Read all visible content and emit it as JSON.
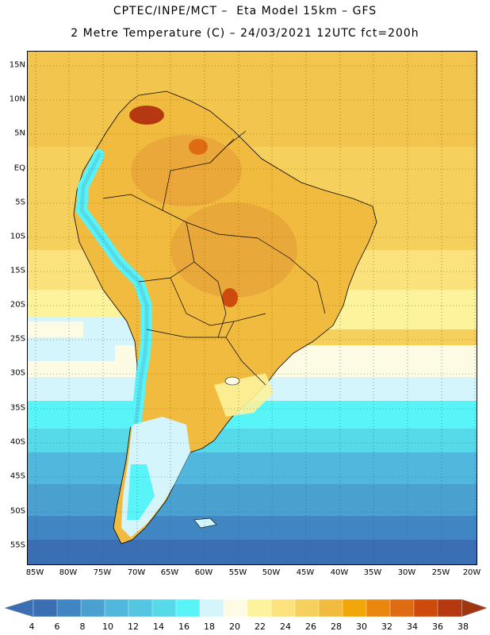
{
  "header": {
    "line1": "CPTEC/INPE/MCT –  Eta Model 15km – GFS",
    "line2": "2 Metre Temperature (C) – 24/03/2021 12UTC fct=200h"
  },
  "axes": {
    "lat_labels": [
      "15N",
      "10N",
      "5N",
      "EQ",
      "5S",
      "10S",
      "15S",
      "20S",
      "25S",
      "30S",
      "35S",
      "40S",
      "45S",
      "50S",
      "55S"
    ],
    "lon_labels": [
      "85W",
      "80W",
      "75W",
      "70W",
      "65W",
      "60W",
      "55W",
      "50W",
      "45W",
      "40W",
      "35W",
      "30W",
      "25W",
      "20W"
    ]
  },
  "colorbar": {
    "labels": [
      "4",
      "6",
      "8",
      "10",
      "12",
      "14",
      "16",
      "18",
      "20",
      "22",
      "24",
      "26",
      "28",
      "30",
      "32",
      "34",
      "36",
      "38"
    ],
    "colors": [
      "#3a6fb3",
      "#3f86c2",
      "#4aa1cf",
      "#51b7dc",
      "#55c6e1",
      "#56d9e8",
      "#59f4f7",
      "#d4f5fb",
      "#fefbe4",
      "#fdf39c",
      "#fbe27c",
      "#f6d05c",
      "#f0bb3f",
      "#f1a708",
      "#e8870d",
      "#df6b12",
      "#cd4a0c",
      "#b53810"
    ],
    "under_color": "#3a6fb3",
    "over_color": "#a0350f"
  }
}
